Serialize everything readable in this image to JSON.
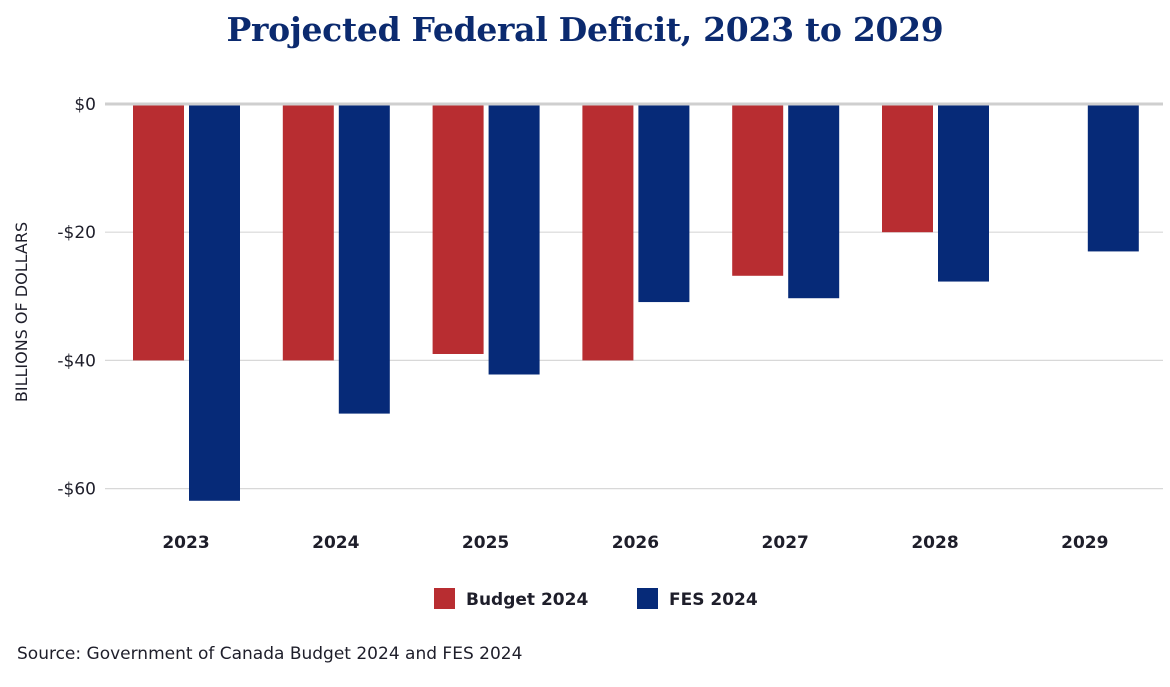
{
  "chart_data": {
    "type": "bar",
    "title": "Projected Federal Deficit, 2023 to 2029",
    "xlabel": "",
    "ylabel": "BILLIONS OF DOLLARS",
    "ylim": [
      -62,
      0
    ],
    "yticks": [
      0,
      -20,
      -40,
      -60
    ],
    "ytick_labels": [
      "$0",
      "-$20",
      "-$40",
      "-$60"
    ],
    "categories": [
      "2023",
      "2024",
      "2025",
      "2026",
      "2027",
      "2028",
      "2029"
    ],
    "series": [
      {
        "name": "Budget 2024",
        "color": "#b82d31",
        "values": [
          -40.0,
          -40.0,
          -39.0,
          -40.0,
          -26.8,
          -20.0,
          null
        ]
      },
      {
        "name": "FES 2024",
        "color": "#062a78",
        "values": [
          -61.9,
          -48.3,
          -42.2,
          -30.9,
          -30.3,
          -27.7,
          -23.0
        ]
      }
    ],
    "grid": true,
    "legend_position": "bottom-center"
  },
  "source": "Source: Government of Canada Budget 2024 and FES 2024",
  "colors": {
    "title": "#0b2a6f",
    "gridline": "#d8d8d8",
    "zero_line": "#cfcfcf"
  }
}
